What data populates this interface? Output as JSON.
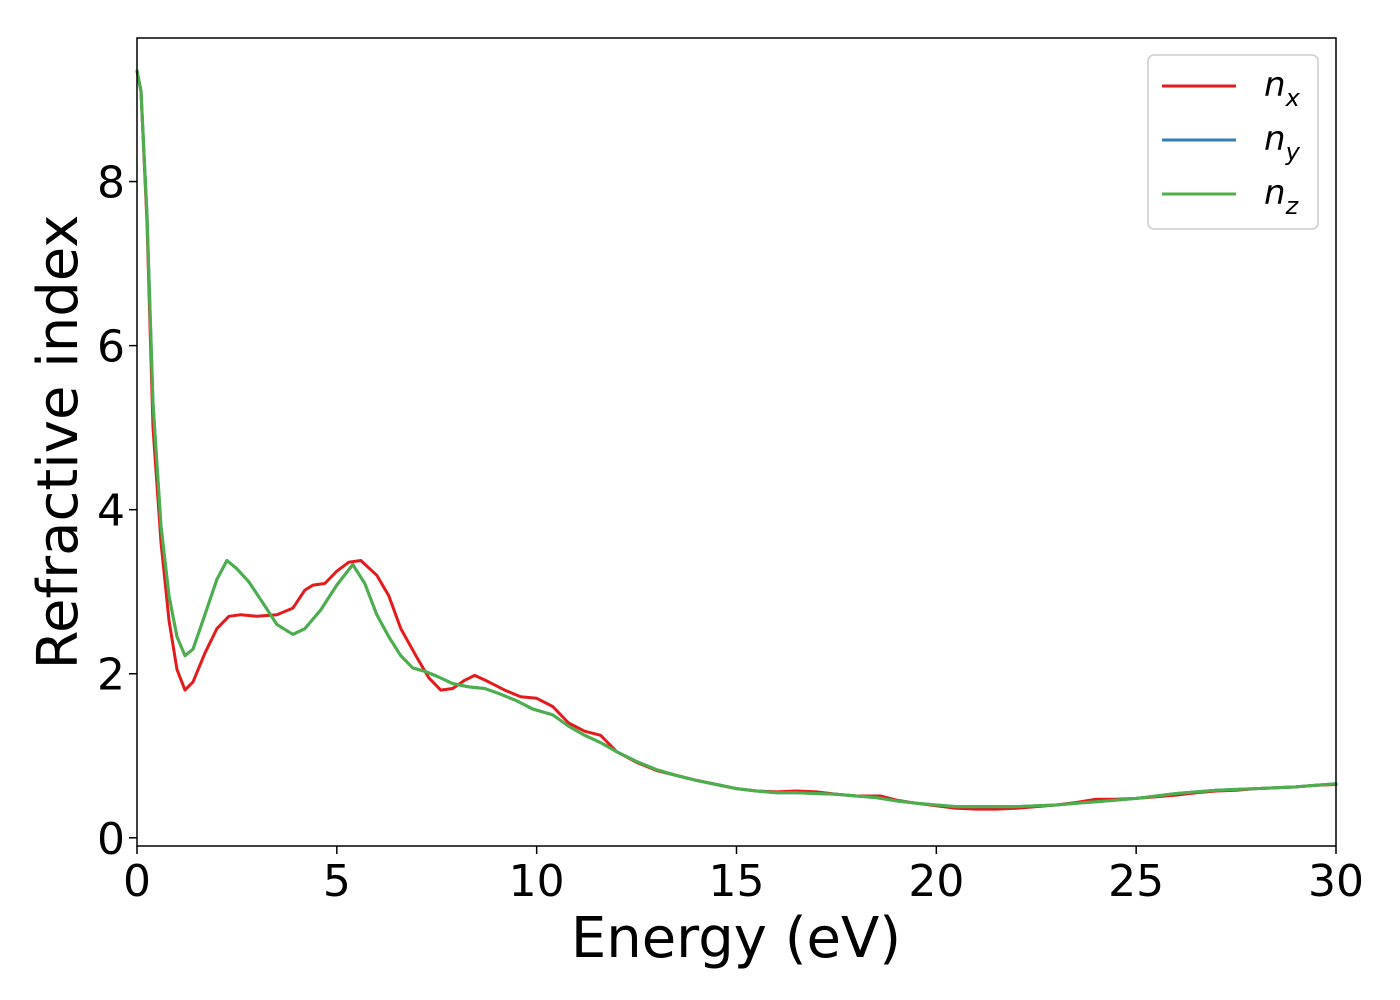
{
  "chart_data": {
    "type": "line",
    "xlabel": "Energy (eV)",
    "ylabel": "Refractive index",
    "xlim": [
      0,
      30
    ],
    "ylim": [
      -0.1,
      9.75
    ],
    "xticks": [
      0,
      5,
      10,
      15,
      20,
      25,
      30
    ],
    "yticks": [
      0,
      2,
      4,
      6,
      8
    ],
    "grid": false,
    "legend_position": "top-right",
    "series": [
      {
        "name": "n",
        "subscript": "x",
        "color": "#e41a1c",
        "points": [
          [
            0,
            9.35
          ],
          [
            0.1,
            9.1
          ],
          [
            0.25,
            7.5
          ],
          [
            0.4,
            5.0
          ],
          [
            0.6,
            3.6
          ],
          [
            0.8,
            2.65
          ],
          [
            1.0,
            2.05
          ],
          [
            1.2,
            1.8
          ],
          [
            1.4,
            1.9
          ],
          [
            1.7,
            2.25
          ],
          [
            2.0,
            2.55
          ],
          [
            2.3,
            2.7
          ],
          [
            2.6,
            2.72
          ],
          [
            3.0,
            2.7
          ],
          [
            3.5,
            2.72
          ],
          [
            3.9,
            2.8
          ],
          [
            4.2,
            3.02
          ],
          [
            4.4,
            3.08
          ],
          [
            4.7,
            3.1
          ],
          [
            5.0,
            3.25
          ],
          [
            5.3,
            3.36
          ],
          [
            5.6,
            3.38
          ],
          [
            6.0,
            3.2
          ],
          [
            6.3,
            2.95
          ],
          [
            6.6,
            2.55
          ],
          [
            7.0,
            2.2
          ],
          [
            7.3,
            1.95
          ],
          [
            7.6,
            1.8
          ],
          [
            7.9,
            1.82
          ],
          [
            8.2,
            1.92
          ],
          [
            8.45,
            1.98
          ],
          [
            8.8,
            1.9
          ],
          [
            9.2,
            1.8
          ],
          [
            9.6,
            1.72
          ],
          [
            10.0,
            1.7
          ],
          [
            10.4,
            1.6
          ],
          [
            10.8,
            1.4
          ],
          [
            11.2,
            1.3
          ],
          [
            11.6,
            1.25
          ],
          [
            12.0,
            1.05
          ],
          [
            12.5,
            0.92
          ],
          [
            13.0,
            0.82
          ],
          [
            13.5,
            0.76
          ],
          [
            14.0,
            0.7
          ],
          [
            14.5,
            0.65
          ],
          [
            15.0,
            0.6
          ],
          [
            15.5,
            0.57
          ],
          [
            16.0,
            0.56
          ],
          [
            16.5,
            0.57
          ],
          [
            17.0,
            0.56
          ],
          [
            17.5,
            0.53
          ],
          [
            18.0,
            0.51
          ],
          [
            18.6,
            0.51
          ],
          [
            19.0,
            0.46
          ],
          [
            19.5,
            0.42
          ],
          [
            20.0,
            0.39
          ],
          [
            20.5,
            0.36
          ],
          [
            21.0,
            0.35
          ],
          [
            21.5,
            0.35
          ],
          [
            22.0,
            0.36
          ],
          [
            22.5,
            0.38
          ],
          [
            23.0,
            0.4
          ],
          [
            23.5,
            0.43
          ],
          [
            24.0,
            0.47
          ],
          [
            24.5,
            0.47
          ],
          [
            25.0,
            0.48
          ],
          [
            25.5,
            0.5
          ],
          [
            26.0,
            0.52
          ],
          [
            26.5,
            0.55
          ],
          [
            27.0,
            0.57
          ],
          [
            27.5,
            0.58
          ],
          [
            28.0,
            0.6
          ],
          [
            28.5,
            0.61
          ],
          [
            29.0,
            0.62
          ],
          [
            29.5,
            0.64
          ],
          [
            30.0,
            0.65
          ]
        ]
      },
      {
        "name": "n",
        "subscript": "y",
        "color": "#377eb8",
        "points": [
          [
            0,
            9.35
          ],
          [
            0.1,
            9.1
          ],
          [
            0.25,
            7.6
          ],
          [
            0.4,
            5.3
          ],
          [
            0.6,
            3.8
          ],
          [
            0.8,
            2.95
          ],
          [
            1.0,
            2.45
          ],
          [
            1.2,
            2.22
          ],
          [
            1.4,
            2.3
          ],
          [
            1.7,
            2.72
          ],
          [
            2.0,
            3.15
          ],
          [
            2.25,
            3.38
          ],
          [
            2.5,
            3.28
          ],
          [
            2.8,
            3.12
          ],
          [
            3.1,
            2.9
          ],
          [
            3.5,
            2.6
          ],
          [
            3.9,
            2.48
          ],
          [
            4.2,
            2.55
          ],
          [
            4.6,
            2.78
          ],
          [
            5.0,
            3.08
          ],
          [
            5.4,
            3.33
          ],
          [
            5.7,
            3.1
          ],
          [
            6.0,
            2.72
          ],
          [
            6.3,
            2.45
          ],
          [
            6.6,
            2.22
          ],
          [
            6.9,
            2.07
          ],
          [
            7.2,
            2.03
          ],
          [
            7.5,
            1.97
          ],
          [
            7.9,
            1.88
          ],
          [
            8.3,
            1.84
          ],
          [
            8.7,
            1.82
          ],
          [
            9.1,
            1.75
          ],
          [
            9.5,
            1.67
          ],
          [
            9.9,
            1.57
          ],
          [
            10.4,
            1.5
          ],
          [
            10.8,
            1.36
          ],
          [
            11.2,
            1.25
          ],
          [
            11.6,
            1.16
          ],
          [
            12.0,
            1.05
          ],
          [
            12.5,
            0.93
          ],
          [
            13.0,
            0.83
          ],
          [
            13.5,
            0.76
          ],
          [
            14.0,
            0.7
          ],
          [
            14.5,
            0.65
          ],
          [
            15.0,
            0.6
          ],
          [
            15.5,
            0.57
          ],
          [
            16.0,
            0.55
          ],
          [
            16.5,
            0.55
          ],
          [
            17.0,
            0.54
          ],
          [
            17.5,
            0.53
          ],
          [
            18.0,
            0.51
          ],
          [
            18.5,
            0.49
          ],
          [
            19.0,
            0.45
          ],
          [
            19.5,
            0.42
          ],
          [
            20.0,
            0.4
          ],
          [
            20.5,
            0.38
          ],
          [
            21.0,
            0.38
          ],
          [
            21.5,
            0.38
          ],
          [
            22.0,
            0.38
          ],
          [
            22.5,
            0.39
          ],
          [
            23.0,
            0.4
          ],
          [
            23.5,
            0.42
          ],
          [
            24.0,
            0.44
          ],
          [
            24.5,
            0.46
          ],
          [
            25.0,
            0.48
          ],
          [
            25.5,
            0.51
          ],
          [
            26.0,
            0.54
          ],
          [
            26.5,
            0.56
          ],
          [
            27.0,
            0.58
          ],
          [
            27.5,
            0.59
          ],
          [
            28.0,
            0.6
          ],
          [
            28.5,
            0.61
          ],
          [
            29.0,
            0.62
          ],
          [
            29.5,
            0.64
          ],
          [
            30.0,
            0.66
          ]
        ]
      },
      {
        "name": "n",
        "subscript": "z",
        "color": "#4daf4a",
        "points": [
          [
            0,
            9.35
          ],
          [
            0.1,
            9.1
          ],
          [
            0.25,
            7.6
          ],
          [
            0.4,
            5.3
          ],
          [
            0.6,
            3.8
          ],
          [
            0.8,
            2.95
          ],
          [
            1.0,
            2.45
          ],
          [
            1.2,
            2.22
          ],
          [
            1.4,
            2.3
          ],
          [
            1.7,
            2.72
          ],
          [
            2.0,
            3.15
          ],
          [
            2.25,
            3.38
          ],
          [
            2.5,
            3.28
          ],
          [
            2.8,
            3.12
          ],
          [
            3.1,
            2.9
          ],
          [
            3.5,
            2.6
          ],
          [
            3.9,
            2.48
          ],
          [
            4.2,
            2.55
          ],
          [
            4.6,
            2.78
          ],
          [
            5.0,
            3.08
          ],
          [
            5.4,
            3.33
          ],
          [
            5.7,
            3.1
          ],
          [
            6.0,
            2.72
          ],
          [
            6.3,
            2.45
          ],
          [
            6.6,
            2.22
          ],
          [
            6.9,
            2.07
          ],
          [
            7.2,
            2.03
          ],
          [
            7.5,
            1.97
          ],
          [
            7.9,
            1.88
          ],
          [
            8.3,
            1.84
          ],
          [
            8.7,
            1.82
          ],
          [
            9.1,
            1.75
          ],
          [
            9.5,
            1.67
          ],
          [
            9.9,
            1.57
          ],
          [
            10.4,
            1.5
          ],
          [
            10.8,
            1.36
          ],
          [
            11.2,
            1.25
          ],
          [
            11.6,
            1.16
          ],
          [
            12.0,
            1.05
          ],
          [
            12.5,
            0.93
          ],
          [
            13.0,
            0.83
          ],
          [
            13.5,
            0.76
          ],
          [
            14.0,
            0.7
          ],
          [
            14.5,
            0.65
          ],
          [
            15.0,
            0.6
          ],
          [
            15.5,
            0.57
          ],
          [
            16.0,
            0.55
          ],
          [
            16.5,
            0.55
          ],
          [
            17.0,
            0.54
          ],
          [
            17.5,
            0.53
          ],
          [
            18.0,
            0.51
          ],
          [
            18.5,
            0.49
          ],
          [
            19.0,
            0.45
          ],
          [
            19.5,
            0.42
          ],
          [
            20.0,
            0.4
          ],
          [
            20.5,
            0.38
          ],
          [
            21.0,
            0.38
          ],
          [
            21.5,
            0.38
          ],
          [
            22.0,
            0.38
          ],
          [
            22.5,
            0.39
          ],
          [
            23.0,
            0.4
          ],
          [
            23.5,
            0.42
          ],
          [
            24.0,
            0.44
          ],
          [
            24.5,
            0.46
          ],
          [
            25.0,
            0.48
          ],
          [
            25.5,
            0.51
          ],
          [
            26.0,
            0.54
          ],
          [
            26.5,
            0.56
          ],
          [
            27.0,
            0.58
          ],
          [
            27.5,
            0.59
          ],
          [
            28.0,
            0.6
          ],
          [
            28.5,
            0.61
          ],
          [
            29.0,
            0.62
          ],
          [
            29.5,
            0.64
          ],
          [
            30.0,
            0.66
          ]
        ]
      }
    ]
  }
}
